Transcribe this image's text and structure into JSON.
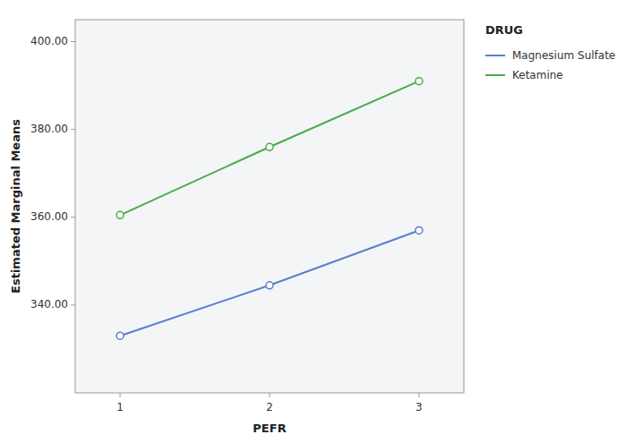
{
  "chart_data": {
    "type": "line",
    "x_label": "PEFR",
    "y_label": "Estimated Marginal Means",
    "x": [
      1,
      2,
      3
    ],
    "series": [
      {
        "name": "Magnesium Sulfate",
        "color": "#5b7fcc",
        "values": [
          333.0,
          344.5,
          357.0
        ]
      },
      {
        "name": "Ketamine",
        "color": "#4aab4a",
        "values": [
          360.5,
          376.0,
          391.0
        ]
      }
    ],
    "legend_title": "DRUG",
    "xlim": [
      0.7,
      3.3
    ],
    "xticks": [
      1,
      2,
      3
    ],
    "ylim": [
      320,
      405
    ],
    "yticks": [
      {
        "value": 340,
        "label": "340.00"
      },
      {
        "value": 360,
        "label": "360.00"
      },
      {
        "value": 380,
        "label": "380.00"
      },
      {
        "value": 400,
        "label": "400.00"
      }
    ],
    "marker": "circle",
    "grid": false,
    "legend": "right"
  }
}
